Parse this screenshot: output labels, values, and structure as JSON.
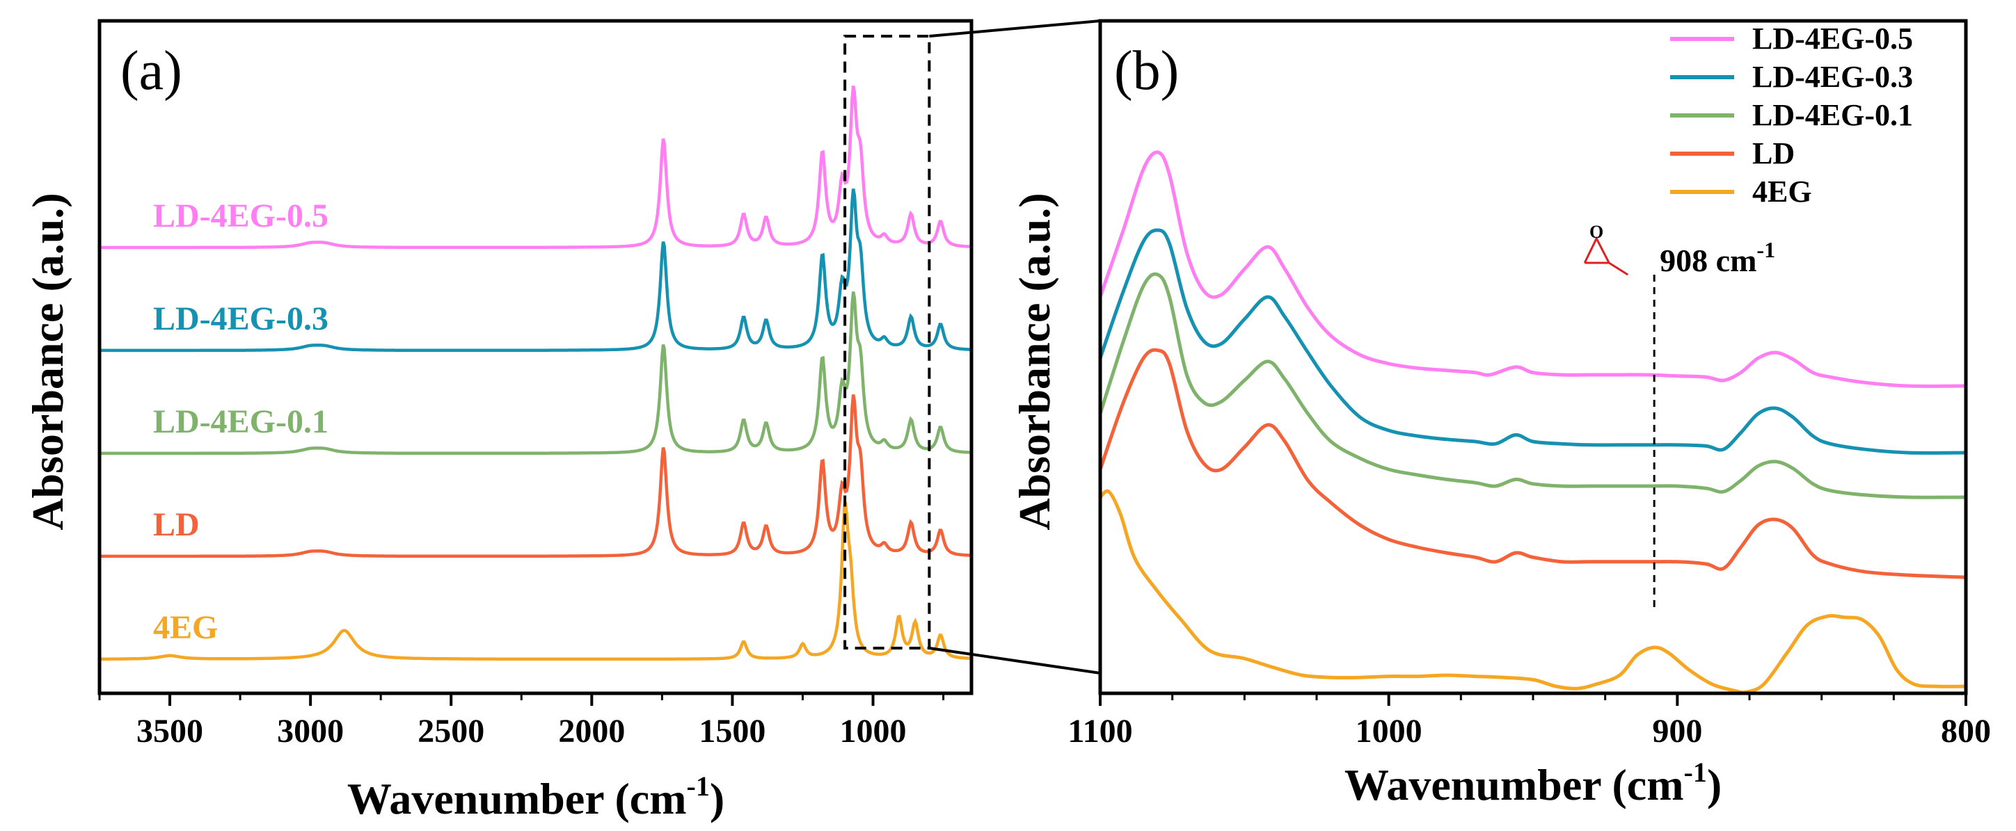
{
  "chart_data": [
    {
      "panel": "(a)",
      "type": "line",
      "xlabel": "Wavenumber (cm",
      "xlabel_sup": "-1",
      "xlabel_close": ")",
      "ylabel": "Absorbance (a.u.)",
      "xlim": [
        3750,
        650
      ],
      "xticks": [
        3500,
        3000,
        2500,
        2000,
        1500,
        1000
      ],
      "xtick_labels": [
        "3500",
        "3000",
        "2500",
        "2000",
        "1500",
        "1000"
      ],
      "y_ticks_shown": false,
      "highlight_region_cm": [
        1100,
        800
      ],
      "series": [
        {
          "name": "LD-4EG-0.5",
          "color": "#ff7ff2",
          "baseline": 4.0,
          "peaks_cm": [
            [
              3000,
              0.03
            ],
            [
              2950,
              0.03
            ],
            [
              1745,
              0.95
            ],
            [
              1460,
              0.28
            ],
            [
              1380,
              0.25
            ],
            [
              1180,
              0.8
            ],
            [
              1110,
              0.45
            ],
            [
              1070,
              1.2
            ],
            [
              1045,
              0.6
            ],
            [
              960,
              0.07
            ],
            [
              865,
              0.28
            ],
            [
              760,
              0.22
            ]
          ]
        },
        {
          "name": "LD-4EG-0.3",
          "color": "#1592b2",
          "baseline": 3.0,
          "peaks_cm": [
            [
              3000,
              0.03
            ],
            [
              2950,
              0.03
            ],
            [
              1745,
              0.95
            ],
            [
              1460,
              0.28
            ],
            [
              1380,
              0.25
            ],
            [
              1180,
              0.8
            ],
            [
              1110,
              0.45
            ],
            [
              1070,
              1.2
            ],
            [
              1045,
              0.6
            ],
            [
              960,
              0.07
            ],
            [
              865,
              0.28
            ],
            [
              760,
              0.22
            ]
          ]
        },
        {
          "name": "LD-4EG-0.1",
          "color": "#7fb26b",
          "baseline": 2.0,
          "peaks_cm": [
            [
              3000,
              0.03
            ],
            [
              2950,
              0.03
            ],
            [
              1745,
              0.95
            ],
            [
              1460,
              0.28
            ],
            [
              1380,
              0.25
            ],
            [
              1180,
              0.8
            ],
            [
              1110,
              0.45
            ],
            [
              1070,
              1.2
            ],
            [
              1045,
              0.6
            ],
            [
              960,
              0.07
            ],
            [
              865,
              0.28
            ],
            [
              760,
              0.22
            ]
          ]
        },
        {
          "name": "LD",
          "color": "#f4623a",
          "baseline": 1.0,
          "peaks_cm": [
            [
              3000,
              0.03
            ],
            [
              2950,
              0.03
            ],
            [
              1745,
              0.95
            ],
            [
              1460,
              0.28
            ],
            [
              1380,
              0.25
            ],
            [
              1180,
              0.8
            ],
            [
              1110,
              0.45
            ],
            [
              1070,
              1.2
            ],
            [
              1045,
              0.6
            ],
            [
              960,
              0.07
            ],
            [
              865,
              0.28
            ],
            [
              760,
              0.22
            ]
          ]
        },
        {
          "name": "4EG",
          "color": "#f5a623",
          "baseline": 0.0,
          "peaks_cm": [
            [
              3500,
              0.03
            ],
            [
              2880,
              0.25
            ],
            [
              1460,
              0.15
            ],
            [
              1250,
              0.12
            ],
            [
              1100,
              1.2
            ],
            [
              1080,
              0.5
            ],
            [
              908,
              0.35
            ],
            [
              850,
              0.3
            ],
            [
              760,
              0.2
            ]
          ]
        }
      ],
      "series_labels": [
        "LD-4EG-0.5",
        "LD-4EG-0.3",
        "LD-4EG-0.1",
        "LD",
        "4EG"
      ]
    },
    {
      "panel": "(b)",
      "type": "line",
      "xlabel": "Wavenumber (cm",
      "xlabel_sup": "-1",
      "xlabel_close": ")",
      "ylabel": "Absorbance (a.u.)",
      "xlim": [
        1100,
        800
      ],
      "xticks": [
        1100,
        1000,
        900,
        800
      ],
      "xtick_labels": [
        "1100",
        "1000",
        "900",
        "800"
      ],
      "y_ticks_shown": false,
      "annotation": {
        "text": "908 cm",
        "sup": "-1",
        "x_cm": 908,
        "marker": "epoxide ring (O)",
        "ring_atom": "O"
      },
      "legend": {
        "placement": "top-right",
        "entries": [
          "LD-4EG-0.5",
          "LD-4EG-0.3",
          "LD-4EG-0.1",
          "LD",
          "4EG"
        ]
      },
      "series": [
        {
          "name": "LD-4EG-0.5",
          "color": "#ff7ff2",
          "points": [
            [
              1100,
              4.8
            ],
            [
              1092,
              5.4
            ],
            [
              1085,
              5.95
            ],
            [
              1080,
              6.1
            ],
            [
              1076,
              5.9
            ],
            [
              1070,
              5.2
            ],
            [
              1064,
              4.85
            ],
            [
              1058,
              4.82
            ],
            [
              1050,
              5.05
            ],
            [
              1042,
              5.25
            ],
            [
              1036,
              5.05
            ],
            [
              1028,
              4.7
            ],
            [
              1020,
              4.45
            ],
            [
              1010,
              4.28
            ],
            [
              1000,
              4.2
            ],
            [
              990,
              4.16
            ],
            [
              980,
              4.14
            ],
            [
              970,
              4.12
            ],
            [
              965,
              4.1
            ],
            [
              956,
              4.17
            ],
            [
              950,
              4.12
            ],
            [
              940,
              4.1
            ],
            [
              930,
              4.1
            ],
            [
              920,
              4.1
            ],
            [
              910,
              4.1
            ],
            [
              900,
              4.09
            ],
            [
              890,
              4.08
            ],
            [
              884,
              4.05
            ],
            [
              878,
              4.12
            ],
            [
              872,
              4.25
            ],
            [
              866,
              4.3
            ],
            [
              860,
              4.24
            ],
            [
              853,
              4.12
            ],
            [
              847,
              4.08
            ],
            [
              835,
              4.03
            ],
            [
              820,
              4.0
            ],
            [
              800,
              4.0
            ]
          ]
        },
        {
          "name": "LD-4EG-0.3",
          "color": "#1592b2",
          "points": [
            [
              1100,
              4.25
            ],
            [
              1092,
              4.85
            ],
            [
              1085,
              5.3
            ],
            [
              1080,
              5.4
            ],
            [
              1076,
              5.28
            ],
            [
              1070,
              4.7
            ],
            [
              1064,
              4.4
            ],
            [
              1058,
              4.38
            ],
            [
              1050,
              4.6
            ],
            [
              1042,
              4.8
            ],
            [
              1036,
              4.62
            ],
            [
              1028,
              4.3
            ],
            [
              1020,
              4.0
            ],
            [
              1010,
              3.72
            ],
            [
              1000,
              3.6
            ],
            [
              990,
              3.55
            ],
            [
              980,
              3.52
            ],
            [
              970,
              3.5
            ],
            [
              963,
              3.48
            ],
            [
              956,
              3.56
            ],
            [
              950,
              3.5
            ],
            [
              940,
              3.48
            ],
            [
              930,
              3.47
            ],
            [
              920,
              3.47
            ],
            [
              910,
              3.47
            ],
            [
              900,
              3.47
            ],
            [
              890,
              3.46
            ],
            [
              884,
              3.43
            ],
            [
              878,
              3.58
            ],
            [
              872,
              3.75
            ],
            [
              866,
              3.8
            ],
            [
              860,
              3.72
            ],
            [
              853,
              3.55
            ],
            [
              847,
              3.48
            ],
            [
              835,
              3.43
            ],
            [
              820,
              3.4
            ],
            [
              800,
              3.4
            ]
          ]
        },
        {
          "name": "LD-4EG-0.1",
          "color": "#7fb26b",
          "points": [
            [
              1100,
              3.75
            ],
            [
              1092,
              4.4
            ],
            [
              1085,
              4.9
            ],
            [
              1080,
              5.0
            ],
            [
              1076,
              4.8
            ],
            [
              1070,
              4.1
            ],
            [
              1064,
              3.85
            ],
            [
              1058,
              3.86
            ],
            [
              1050,
              4.05
            ],
            [
              1042,
              4.22
            ],
            [
              1036,
              4.06
            ],
            [
              1028,
              3.75
            ],
            [
              1020,
              3.5
            ],
            [
              1010,
              3.35
            ],
            [
              1000,
              3.25
            ],
            [
              990,
              3.2
            ],
            [
              980,
              3.16
            ],
            [
              970,
              3.13
            ],
            [
              963,
              3.1
            ],
            [
              956,
              3.16
            ],
            [
              950,
              3.12
            ],
            [
              940,
              3.1
            ],
            [
              930,
              3.1
            ],
            [
              920,
              3.1
            ],
            [
              910,
              3.1
            ],
            [
              900,
              3.1
            ],
            [
              890,
              3.08
            ],
            [
              884,
              3.05
            ],
            [
              878,
              3.15
            ],
            [
              872,
              3.28
            ],
            [
              866,
              3.32
            ],
            [
              860,
              3.26
            ],
            [
              853,
              3.12
            ],
            [
              847,
              3.06
            ],
            [
              835,
              3.02
            ],
            [
              820,
              3.0
            ],
            [
              800,
              3.0
            ]
          ]
        },
        {
          "name": "LD",
          "color": "#f4623a",
          "points": [
            [
              1100,
              3.25
            ],
            [
              1092,
              3.85
            ],
            [
              1085,
              4.25
            ],
            [
              1080,
              4.32
            ],
            [
              1076,
              4.2
            ],
            [
              1070,
              3.6
            ],
            [
              1064,
              3.3
            ],
            [
              1058,
              3.25
            ],
            [
              1050,
              3.45
            ],
            [
              1042,
              3.65
            ],
            [
              1036,
              3.5
            ],
            [
              1028,
              3.15
            ],
            [
              1020,
              2.95
            ],
            [
              1010,
              2.75
            ],
            [
              1000,
              2.62
            ],
            [
              990,
              2.55
            ],
            [
              980,
              2.5
            ],
            [
              970,
              2.46
            ],
            [
              963,
              2.42
            ],
            [
              956,
              2.5
            ],
            [
              950,
              2.46
            ],
            [
              940,
              2.42
            ],
            [
              930,
              2.42
            ],
            [
              920,
              2.42
            ],
            [
              910,
              2.42
            ],
            [
              900,
              2.42
            ],
            [
              890,
              2.4
            ],
            [
              884,
              2.36
            ],
            [
              878,
              2.55
            ],
            [
              872,
              2.75
            ],
            [
              866,
              2.8
            ],
            [
              860,
              2.72
            ],
            [
              853,
              2.48
            ],
            [
              847,
              2.4
            ],
            [
              835,
              2.33
            ],
            [
              820,
              2.3
            ],
            [
              800,
              2.28
            ]
          ]
        },
        {
          "name": "4EG",
          "color": "#f5a623",
          "points": [
            [
              1100,
              3.0
            ],
            [
              1097,
              3.05
            ],
            [
              1093,
              2.85
            ],
            [
              1088,
              2.45
            ],
            [
              1080,
              2.15
            ],
            [
              1072,
              1.9
            ],
            [
              1062,
              1.62
            ],
            [
              1050,
              1.55
            ],
            [
              1040,
              1.47
            ],
            [
              1030,
              1.4
            ],
            [
              1020,
              1.38
            ],
            [
              1010,
              1.38
            ],
            [
              1000,
              1.39
            ],
            [
              990,
              1.39
            ],
            [
              980,
              1.4
            ],
            [
              970,
              1.39
            ],
            [
              960,
              1.38
            ],
            [
              950,
              1.36
            ],
            [
              942,
              1.3
            ],
            [
              935,
              1.28
            ],
            [
              928,
              1.32
            ],
            [
              920,
              1.4
            ],
            [
              914,
              1.58
            ],
            [
              908,
              1.65
            ],
            [
              903,
              1.6
            ],
            [
              896,
              1.45
            ],
            [
              888,
              1.32
            ],
            [
              880,
              1.26
            ],
            [
              876,
              1.25
            ],
            [
              870,
              1.32
            ],
            [
              862,
              1.6
            ],
            [
              855,
              1.85
            ],
            [
              848,
              1.93
            ],
            [
              842,
              1.92
            ],
            [
              836,
              1.9
            ],
            [
              830,
              1.75
            ],
            [
              824,
              1.45
            ],
            [
              818,
              1.32
            ],
            [
              810,
              1.3
            ],
            [
              800,
              1.3
            ]
          ]
        }
      ]
    }
  ]
}
